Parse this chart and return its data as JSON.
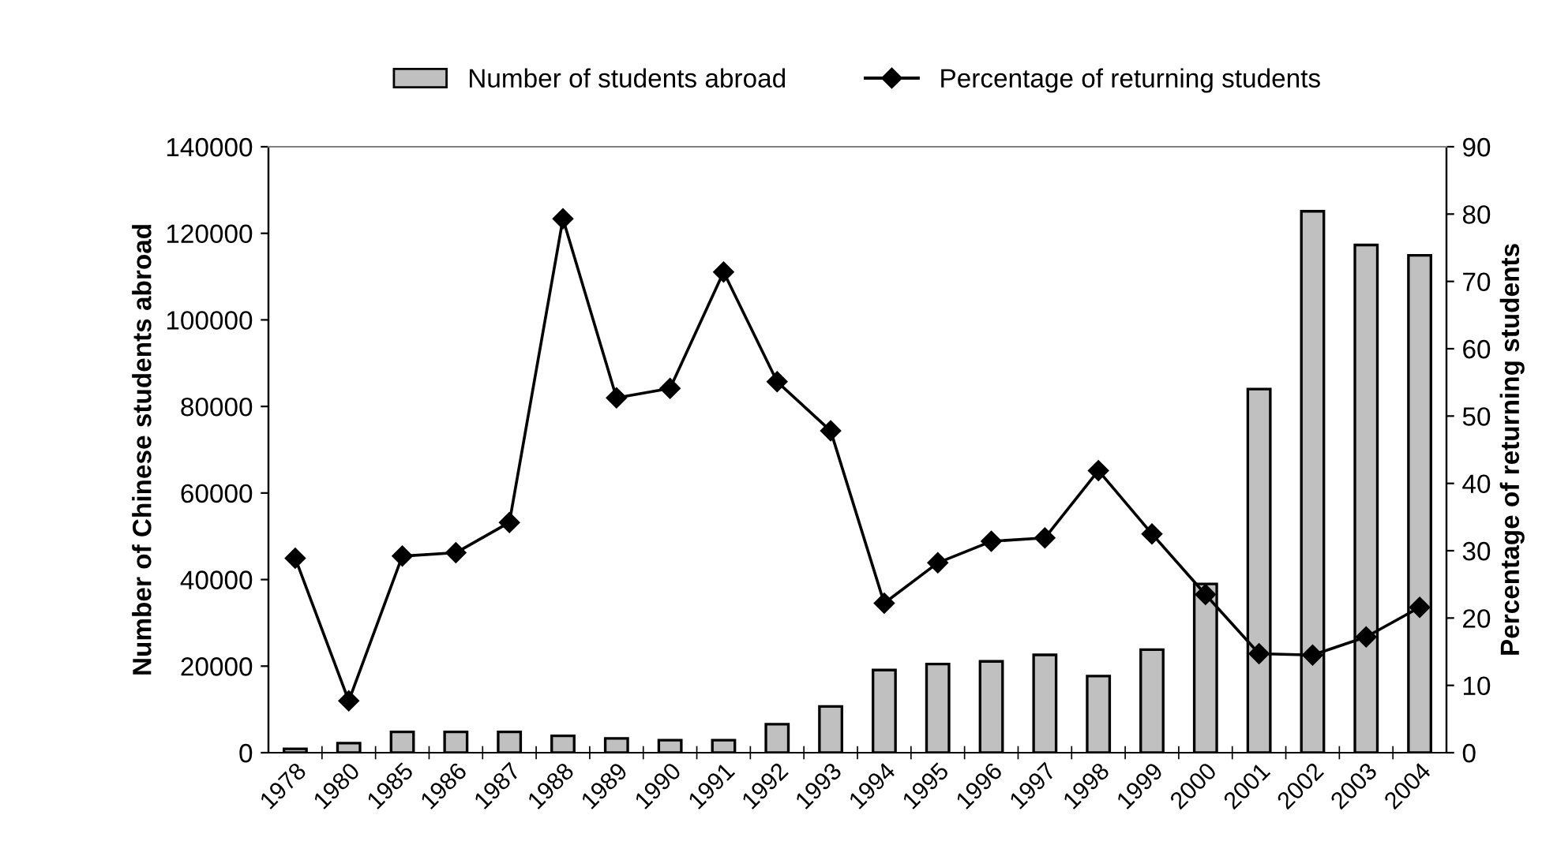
{
  "chart_data": {
    "type": "bar",
    "categories": [
      "1978",
      "1980",
      "1985",
      "1986",
      "1987",
      "1988",
      "1989",
      "1990",
      "1991",
      "1992",
      "1993",
      "1994",
      "1995",
      "1996",
      "1997",
      "1998",
      "1999",
      "2000",
      "2001",
      "2002",
      "2003",
      "2004"
    ],
    "series": [
      {
        "name": "Number of students abroad",
        "color": "#c0c0c0",
        "values": [
          900,
          2200,
          4800,
          4800,
          4800,
          3900,
          3300,
          2900,
          2900,
          6600,
          10700,
          19100,
          20500,
          21100,
          22600,
          17700,
          23800,
          39000,
          84000,
          125100,
          117300,
          114900
        ]
      },
      {
        "name": "Percentage of returning students",
        "type": "line",
        "axis": "y2",
        "color": "#000000",
        "marker": "diamond",
        "values": [
          28.9,
          7.7,
          29.2,
          29.7,
          34.2,
          79.3,
          52.7,
          54.1,
          71.4,
          55.1,
          47.8,
          22.2,
          28.2,
          31.4,
          31.9,
          41.9,
          32.5,
          23.5,
          14.7,
          14.5,
          17.2,
          21.6
        ]
      }
    ],
    "ylabel": "Number of Chinese students abroad",
    "y2label": "Percentage of returning students",
    "ylim": [
      0,
      140000
    ],
    "yticks": [
      0,
      20000,
      40000,
      60000,
      80000,
      100000,
      120000,
      140000
    ],
    "y2lim": [
      0,
      90
    ],
    "y2ticks": [
      0,
      10,
      20,
      30,
      40,
      50,
      60,
      70,
      80,
      90
    ],
    "grid": false,
    "legend": "top"
  }
}
